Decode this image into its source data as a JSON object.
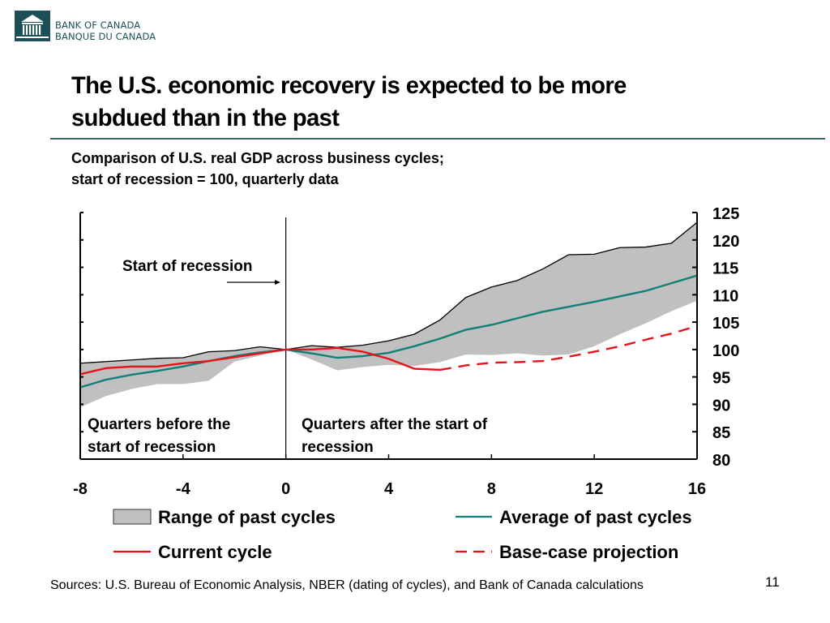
{
  "header": {
    "logo_icon": "bank-building-icon",
    "logo_line1": "BANK OF CANADA",
    "logo_line2": "BANQUE DU CANADA",
    "title_line1": "The U.S. economic recovery is expected to be more",
    "title_line2": "subdued than in the past",
    "subtitle_line1": "Comparison of U.S. real GDP across business cycles;",
    "subtitle_line2": "start of recession = 100, quarterly data"
  },
  "colors": {
    "range_fill": "#c0c0c0",
    "range_edge": "#000000",
    "average": "#138078",
    "current": "#e8121b",
    "projection": "#e8121b",
    "rule": "#3a6468",
    "brand": "#1d4f57"
  },
  "chart_data": {
    "type": "area",
    "title": "Comparison of U.S. real GDP across business cycles; start of recession = 100, quarterly data",
    "xlabel": "",
    "ylabel": "",
    "xlim": [
      -8,
      16
    ],
    "ylim": [
      80,
      125
    ],
    "x_ticks": [
      "-8",
      "-4",
      "0",
      "4",
      "8",
      "12",
      "16"
    ],
    "x_tick_values": [
      -8,
      -4,
      0,
      4,
      8,
      12,
      16
    ],
    "y_ticks": [
      "125",
      "120",
      "115",
      "110",
      "105",
      "100",
      "95",
      "90",
      "85",
      "80"
    ],
    "y_tick_values": [
      125,
      120,
      115,
      110,
      105,
      100,
      95,
      90,
      85,
      80
    ],
    "y_axis_side": "right",
    "grid": false,
    "annotations": {
      "start_label": "Start of recession",
      "before_line1": "Quarters before the",
      "before_line2": "start of recession",
      "after_line1": "Quarters after the start of",
      "after_line2": "recession"
    },
    "x": [
      -8,
      -7,
      -6,
      -5,
      -4,
      -3,
      -2,
      -1,
      0,
      1,
      2,
      3,
      4,
      5,
      6,
      7,
      8,
      9,
      10,
      11,
      12,
      13,
      14,
      15,
      16
    ],
    "series": [
      {
        "name": "Range of past cycles",
        "kind": "band",
        "upper": [
          97.5,
          97.8,
          98.1,
          98.4,
          98.5,
          99.6,
          99.8,
          100.5,
          100,
          100.7,
          100.4,
          100.8,
          101.6,
          102.8,
          105.4,
          109.5,
          111.4,
          112.6,
          114.7,
          117.3,
          117.4,
          118.6,
          118.7,
          119.4,
          123.2
        ],
        "lower": [
          89.5,
          91.5,
          92.8,
          93.7,
          93.7,
          94.3,
          97.8,
          98.9,
          100,
          98.2,
          96.2,
          96.8,
          97.2,
          97.0,
          97.7,
          99.1,
          99.0,
          99.3,
          98.9,
          99.1,
          100.6,
          102.8,
          104.8,
          107.0,
          108.9
        ]
      },
      {
        "name": "Average of past cycles",
        "kind": "line",
        "values": [
          93.1,
          94.5,
          95.4,
          96.1,
          96.9,
          97.9,
          98.8,
          99.5,
          100,
          99.3,
          98.5,
          98.8,
          99.4,
          100.6,
          102.0,
          103.6,
          104.5,
          105.7,
          106.9,
          107.8,
          108.7,
          109.7,
          110.7,
          112.1,
          113.5
        ]
      },
      {
        "name": "Current cycle",
        "kind": "line",
        "x": [
          -8,
          -7,
          -6,
          -5,
          -4,
          -3,
          -2,
          -1,
          0,
          1,
          2,
          3,
          4,
          5,
          6
        ],
        "values": [
          95.5,
          96.6,
          96.9,
          96.9,
          97.5,
          97.9,
          98.6,
          99.3,
          100,
          100.0,
          100.3,
          99.6,
          98.3,
          96.5,
          96.3
        ]
      },
      {
        "name": "Base-case projection",
        "kind": "dashed-line",
        "x": [
          6,
          7,
          8,
          9,
          10,
          11,
          12,
          13,
          14,
          15,
          16
        ],
        "values": [
          96.3,
          97.1,
          97.6,
          97.7,
          97.9,
          98.7,
          99.6,
          100.6,
          101.8,
          102.9,
          104.3
        ]
      }
    ],
    "legend": [
      {
        "label": "Range of past cycles",
        "swatch": "box"
      },
      {
        "label": "Average of past cycles",
        "swatch": "line"
      },
      {
        "label": "Current cycle",
        "swatch": "line"
      },
      {
        "label": "Base-case projection",
        "swatch": "dashed"
      }
    ],
    "legend_position": "bottom"
  },
  "footer": {
    "sources": "Sources: U.S. Bureau of Economic Analysis, NBER (dating of cycles), and Bank of Canada calculations",
    "page_number": "11"
  }
}
